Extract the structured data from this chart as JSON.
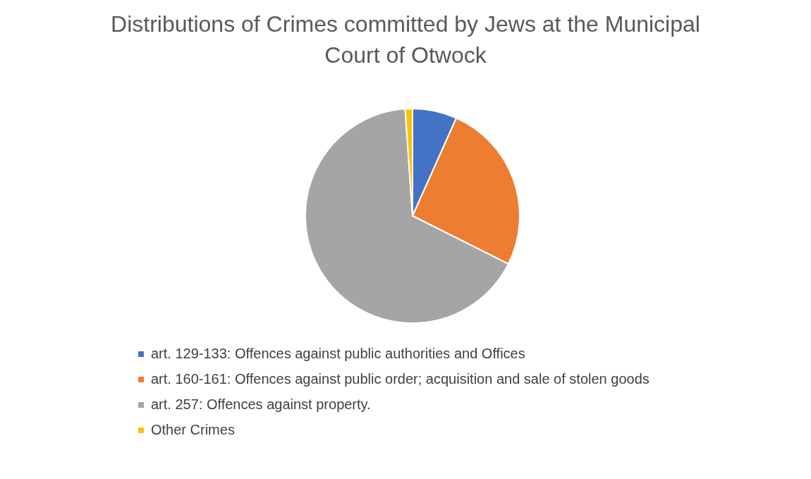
{
  "chart_data": {
    "type": "pie",
    "title": "Distributions of Crimes committed by Jews at the Municipal Court of Otwock",
    "categories": [
      "art. 129-133: Offences against public authorities and Offices",
      "art. 160-161: Offences against public order; acquisition and sale of stolen goods",
      "art. 257: Offences against property.",
      "Other Crimes"
    ],
    "values": [
      6.7,
      25.7,
      66.5,
      1.1
    ],
    "colors": [
      "#4472c4",
      "#ed7d31",
      "#a5a5a5",
      "#ffc000"
    ],
    "legend": "bottom"
  }
}
